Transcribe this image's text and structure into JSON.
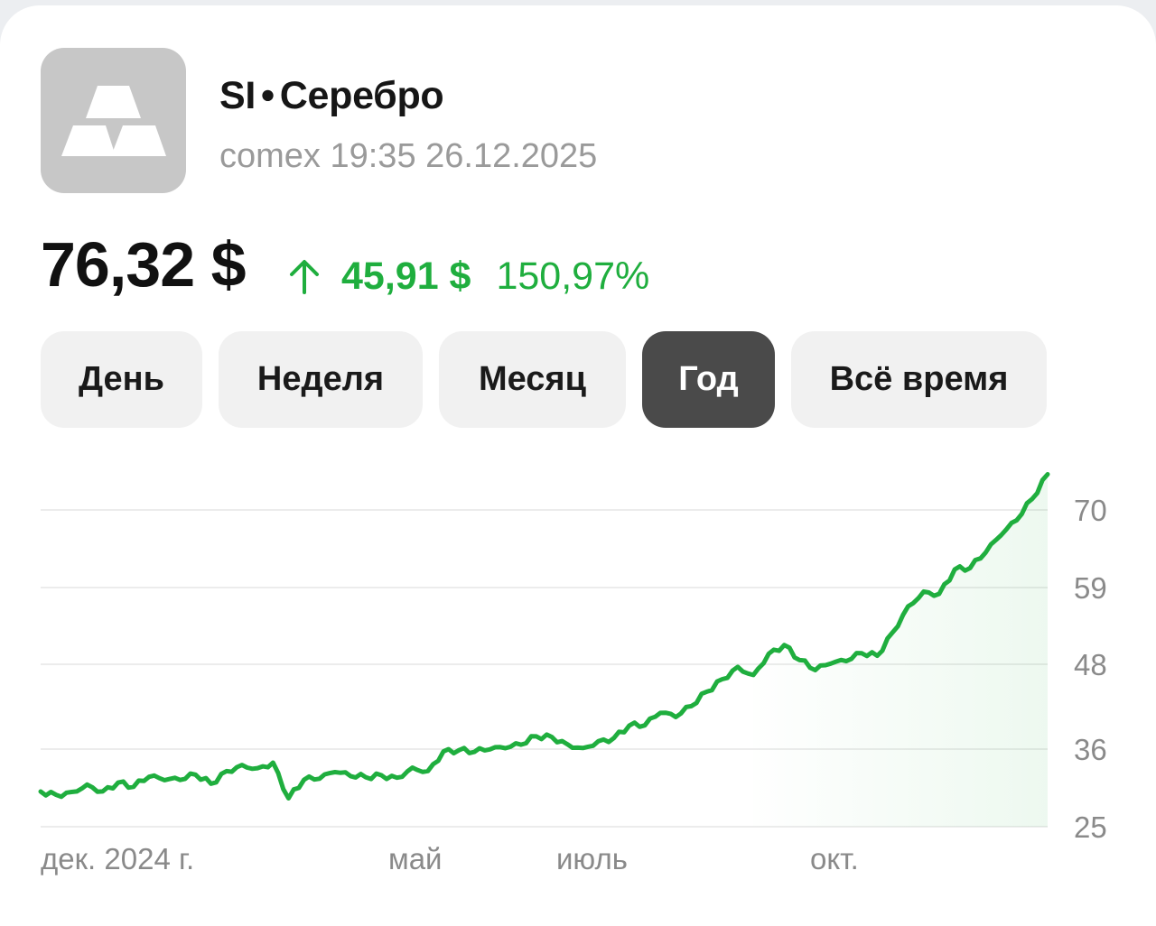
{
  "instrument": {
    "ticker": "SI",
    "separator": "•",
    "name": "Серебро",
    "exchange_time": "comex 19:35 26.12.2025",
    "logo_icon": "silver-bars-icon"
  },
  "quote": {
    "price": "76,32 $",
    "change_abs": "45,91 $",
    "change_pct": "150,97%",
    "direction": "up",
    "direction_icon": "arrow-up-icon",
    "accent_color": "#1fae3e"
  },
  "periods": [
    {
      "label": "День",
      "active": false
    },
    {
      "label": "Неделя",
      "active": false
    },
    {
      "label": "Месяц",
      "active": false
    },
    {
      "label": "Год",
      "active": true
    },
    {
      "label": "Всё время",
      "active": false
    }
  ],
  "chart_data": {
    "type": "line",
    "x_tick_labels": [
      "дек. 2024 г.",
      "май",
      "июль",
      "окт."
    ],
    "y_tick_labels": [
      "70",
      "59",
      "48",
      "36",
      "25"
    ],
    "y_ticks": [
      70,
      59,
      48,
      36,
      25
    ],
    "ylim": [
      25,
      78
    ],
    "grid": true,
    "line_color": "#1fae3e",
    "series": [
      {
        "values": [
          29.8,
          29.3,
          30.2,
          30.9,
          30.4,
          31.0,
          30.6,
          31.9,
          31.5,
          32.0,
          32.3,
          31.4,
          32.5,
          33.7,
          33.2,
          34.1,
          29.4,
          31.5,
          32.0,
          32.3,
          32.2,
          32.0,
          32.4,
          32.3,
          33.1,
          33.0,
          35.2,
          36.0,
          35.7,
          36.1,
          36.4,
          36.2,
          37.9,
          37.3,
          37.0,
          36.3,
          37.2,
          37.7,
          38.8,
          39.5,
          40.8,
          41.0,
          42.2,
          44.1,
          45.9,
          47.0,
          46.8,
          49.3,
          51.4,
          48.6,
          47.0,
          48.0,
          47.9,
          50.1,
          49.1,
          53.2,
          56.1,
          58.1,
          58.0,
          61.1,
          62.6,
          63.8,
          67.0,
          68.0,
          71.2,
          75.4
        ]
      }
    ]
  }
}
